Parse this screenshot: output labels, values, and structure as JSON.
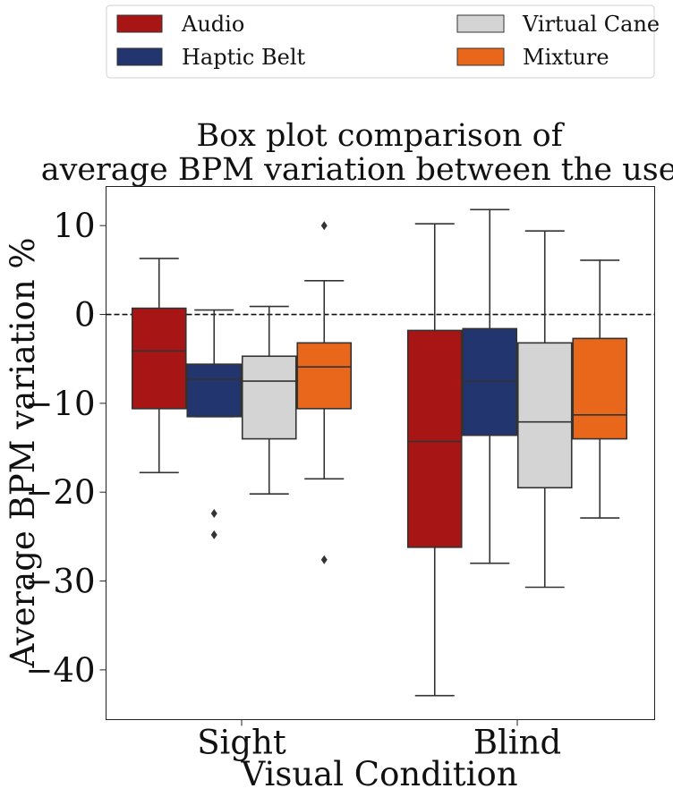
{
  "chart_data": {
    "type": "box",
    "title": [
      "Box plot comparison of",
      "average BPM variation between the users."
    ],
    "xlabel": "Visual Condition",
    "ylabel": "Average BPM variation %",
    "categories": [
      "Sight",
      "Blind"
    ],
    "ylim": [
      -45.6,
      14.4
    ],
    "yticks": [
      10,
      0,
      -10,
      -20,
      -30,
      -40
    ],
    "ytick_labels": [
      "10",
      "0",
      "−10",
      "−20",
      "−30",
      "−40"
    ],
    "reference_line": {
      "y": 0,
      "style": "dashed"
    },
    "legend": {
      "position": "top",
      "columns": 2
    },
    "series": [
      {
        "name": "Audio",
        "color": "#a81515",
        "boxes": [
          {
            "category": "Sight",
            "whisker_low": -17.8,
            "q1": -10.6,
            "median": -4.1,
            "q3": 0.7,
            "whisker_high": 6.3,
            "outliers": []
          },
          {
            "category": "Blind",
            "whisker_low": -42.9,
            "q1": -26.2,
            "median": -14.3,
            "q3": -1.8,
            "whisker_high": 10.2,
            "outliers": []
          }
        ]
      },
      {
        "name": "Haptic Belt",
        "color": "#22356e",
        "boxes": [
          {
            "category": "Sight",
            "whisker_low": -11.5,
            "q1": -11.5,
            "median": -7.3,
            "q3": -5.6,
            "whisker_high": 0.5,
            "outliers": [
              -22.4,
              -24.8
            ]
          },
          {
            "category": "Blind",
            "whisker_low": -28.0,
            "q1": -13.6,
            "median": -7.5,
            "q3": -1.6,
            "whisker_high": 11.8,
            "outliers": []
          }
        ]
      },
      {
        "name": "Virtual Cane",
        "color": "#d4d4d4",
        "boxes": [
          {
            "category": "Sight",
            "whisker_low": -20.2,
            "q1": -14.0,
            "median": -7.5,
            "q3": -4.7,
            "whisker_high": 0.9,
            "outliers": []
          },
          {
            "category": "Blind",
            "whisker_low": -30.7,
            "q1": -19.5,
            "median": -12.1,
            "q3": -3.2,
            "whisker_high": 9.4,
            "outliers": []
          }
        ]
      },
      {
        "name": "Mixture",
        "color": "#e8671b",
        "boxes": [
          {
            "category": "Sight",
            "whisker_low": -18.5,
            "q1": -10.6,
            "median": -5.9,
            "q3": -3.2,
            "whisker_high": 3.8,
            "outliers": [
              10.0,
              -27.6
            ]
          },
          {
            "category": "Blind",
            "whisker_low": -22.9,
            "q1": -14.0,
            "median": -11.3,
            "q3": -2.7,
            "whisker_high": 6.1,
            "outliers": []
          }
        ]
      }
    ]
  }
}
